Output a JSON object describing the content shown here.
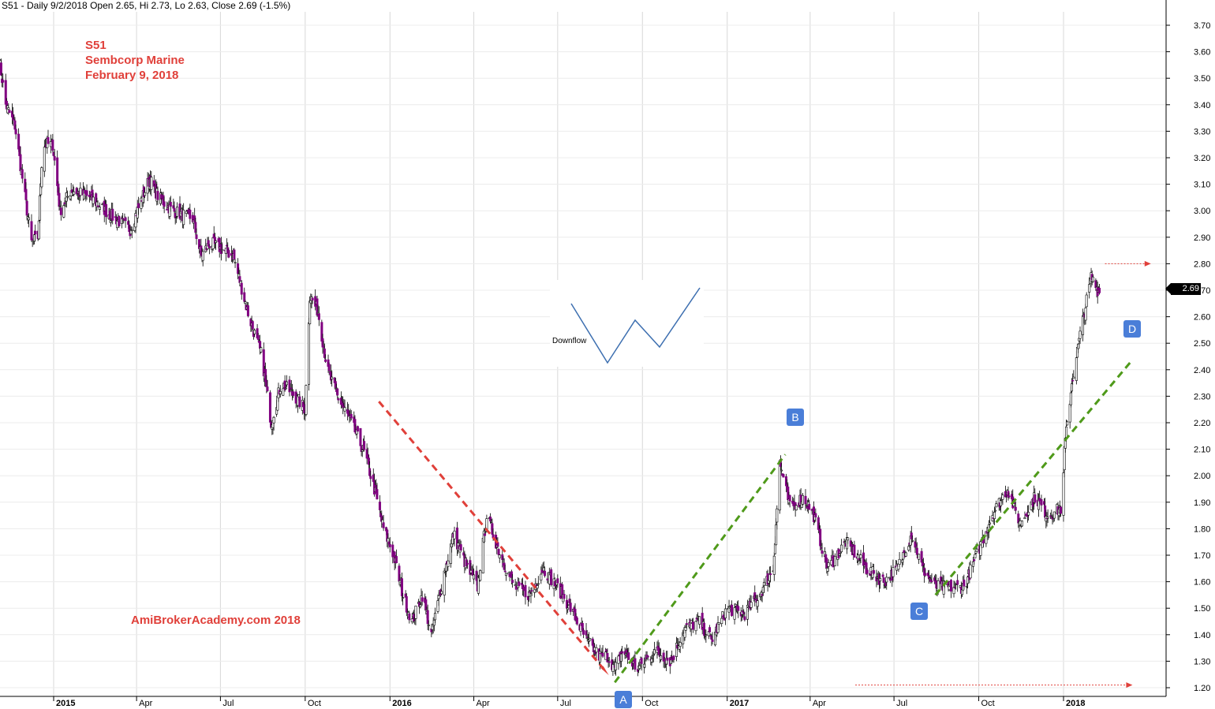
{
  "header": "S51 - Daily 9/2/2018 Open 2.65, Hi 2.73, Lo 2.63, Close 2.69 (-1.5%)",
  "annotations": {
    "symbol": "S51",
    "company": "Sembcorp Marine",
    "date": "February 9, 2018",
    "watermark": "AmiBrokerAcademy.com  2018",
    "pattern_label": "Downflow",
    "last_price_tag": "2.69",
    "markers": [
      "A",
      "B",
      "C",
      "D"
    ]
  },
  "colors": {
    "candles": "#800080",
    "candle_outline": "#000000",
    "down_trend": "#e0403a",
    "up_trend": "#4f9a1a",
    "marker_box": "#4a7ed8",
    "grid": "#d8d8d8",
    "text_red": "#e0403a"
  },
  "chart_data": {
    "type": "candlestick",
    "title": "S51 - Daily 9/2/2018",
    "ylim": [
      1.17,
      3.75
    ],
    "y_ticks": [
      "1.20",
      "1.30",
      "1.40",
      "1.50",
      "1.60",
      "1.70",
      "1.80",
      "1.90",
      "2.00",
      "2.10",
      "2.20",
      "2.30",
      "2.40",
      "2.50",
      "2.60",
      "2.70",
      "2.80",
      "2.90",
      "3.00",
      "3.10",
      "3.20",
      "3.30",
      "3.40",
      "3.50",
      "3.60",
      "3.70"
    ],
    "x_labels": [
      "2015",
      "Apr",
      "Jul",
      "Oct",
      "2016",
      "Apr",
      "Jul",
      "Oct",
      "2017",
      "Apr",
      "Jul",
      "Oct",
      "2018"
    ],
    "x_bold": [
      "2015",
      "2016",
      "2017",
      "2018"
    ],
    "price_path": [
      [
        "2014-11-01",
        3.62
      ],
      [
        "2014-11-10",
        3.4
      ],
      [
        "2014-11-20",
        3.32
      ],
      [
        "2014-12-01",
        3.05
      ],
      [
        "2014-12-08",
        2.88
      ],
      [
        "2014-12-15",
        2.9
      ],
      [
        "2014-12-20",
        3.25
      ],
      [
        "2014-12-31",
        3.25
      ],
      [
        "2015-01-08",
        3.0
      ],
      [
        "2015-01-20",
        3.08
      ],
      [
        "2015-02-10",
        3.05
      ],
      [
        "2015-03-05",
        2.98
      ],
      [
        "2015-03-25",
        2.93
      ],
      [
        "2015-04-15",
        3.12
      ],
      [
        "2015-04-25",
        3.05
      ],
      [
        "2015-05-10",
        3.0
      ],
      [
        "2015-06-01",
        2.97
      ],
      [
        "2015-06-10",
        2.83
      ],
      [
        "2015-06-20",
        2.88
      ],
      [
        "2015-07-15",
        2.83
      ],
      [
        "2015-08-01",
        2.6
      ],
      [
        "2015-08-15",
        2.45
      ],
      [
        "2015-08-25",
        2.2
      ],
      [
        "2015-09-05",
        2.35
      ],
      [
        "2015-09-20",
        2.3
      ],
      [
        "2015-10-01",
        2.25
      ],
      [
        "2015-10-06",
        2.68
      ],
      [
        "2015-10-15",
        2.62
      ],
      [
        "2015-10-25",
        2.4
      ],
      [
        "2015-11-05",
        2.3
      ],
      [
        "2015-11-20",
        2.2
      ],
      [
        "2015-12-05",
        2.08
      ],
      [
        "2015-12-15",
        1.95
      ],
      [
        "2015-12-25",
        1.8
      ],
      [
        "2016-01-05",
        1.7
      ],
      [
        "2016-01-15",
        1.55
      ],
      [
        "2016-01-25",
        1.45
      ],
      [
        "2016-02-05",
        1.55
      ],
      [
        "2016-02-15",
        1.4
      ],
      [
        "2016-02-28",
        1.62
      ],
      [
        "2016-03-10",
        1.78
      ],
      [
        "2016-03-25",
        1.65
      ],
      [
        "2016-04-05",
        1.58
      ],
      [
        "2016-04-15",
        1.85
      ],
      [
        "2016-04-30",
        1.7
      ],
      [
        "2016-05-15",
        1.58
      ],
      [
        "2016-06-01",
        1.55
      ],
      [
        "2016-06-15",
        1.65
      ],
      [
        "2016-07-01",
        1.58
      ],
      [
        "2016-07-15",
        1.5
      ],
      [
        "2016-08-01",
        1.38
      ],
      [
        "2016-08-15",
        1.32
      ],
      [
        "2016-08-25",
        1.32
      ],
      [
        "2016-09-01",
        1.27
      ],
      [
        "2016-09-10",
        1.34
      ],
      [
        "2016-09-25",
        1.27
      ],
      [
        "2016-10-15",
        1.34
      ],
      [
        "2016-11-01",
        1.3
      ],
      [
        "2016-11-15",
        1.42
      ],
      [
        "2016-12-01",
        1.45
      ],
      [
        "2016-12-15",
        1.38
      ],
      [
        "2017-01-01",
        1.5
      ],
      [
        "2017-01-20",
        1.48
      ],
      [
        "2017-02-05",
        1.55
      ],
      [
        "2017-02-20",
        1.65
      ],
      [
        "2017-02-27",
        2.05
      ],
      [
        "2017-03-10",
        1.88
      ],
      [
        "2017-03-25",
        1.92
      ],
      [
        "2017-04-05",
        1.85
      ],
      [
        "2017-04-20",
        1.65
      ],
      [
        "2017-05-10",
        1.75
      ],
      [
        "2017-06-01",
        1.65
      ],
      [
        "2017-06-20",
        1.6
      ],
      [
        "2017-07-05",
        1.65
      ],
      [
        "2017-07-20",
        1.78
      ],
      [
        "2017-08-01",
        1.65
      ],
      [
        "2017-08-15",
        1.58
      ],
      [
        "2017-09-01",
        1.58
      ],
      [
        "2017-09-15",
        1.58
      ],
      [
        "2017-10-01",
        1.72
      ],
      [
        "2017-10-15",
        1.85
      ],
      [
        "2017-11-01",
        1.95
      ],
      [
        "2017-11-15",
        1.82
      ],
      [
        "2017-12-01",
        1.92
      ],
      [
        "2017-12-15",
        1.85
      ],
      [
        "2017-12-31",
        1.88
      ],
      [
        "2018-01-02",
        2.1
      ],
      [
        "2018-01-10",
        2.35
      ],
      [
        "2018-01-20",
        2.55
      ],
      [
        "2018-01-31",
        2.75
      ],
      [
        "2018-02-09",
        2.69
      ]
    ],
    "trendlines": [
      {
        "style": "down",
        "from": [
          "2015-12-20",
          2.28
        ],
        "to": [
          "2016-08-20",
          1.27
        ]
      },
      {
        "style": "up",
        "from": [
          "2016-09-01",
          1.22
        ],
        "to": [
          "2017-03-05",
          2.08
        ]
      },
      {
        "style": "up",
        "from": [
          "2017-08-15",
          1.55
        ],
        "to": [
          "2018-03-15",
          2.43
        ]
      }
    ],
    "arrows_right": [
      {
        "y": 2.8,
        "from": "2018-02-15",
        "to": "2018-03-30"
      },
      {
        "y": 1.21,
        "from": "2017-05-20",
        "to": "2018-03-10"
      }
    ],
    "marker_points": [
      {
        "label": "A",
        "date": "2016-09-05",
        "anchor": "below"
      },
      {
        "label": "B",
        "date": "2017-03-05",
        "price": 2.23
      },
      {
        "label": "C",
        "date": "2017-08-20",
        "price": 1.49
      },
      {
        "label": "D",
        "date": "2018-03-05",
        "price": 2.54
      }
    ]
  }
}
